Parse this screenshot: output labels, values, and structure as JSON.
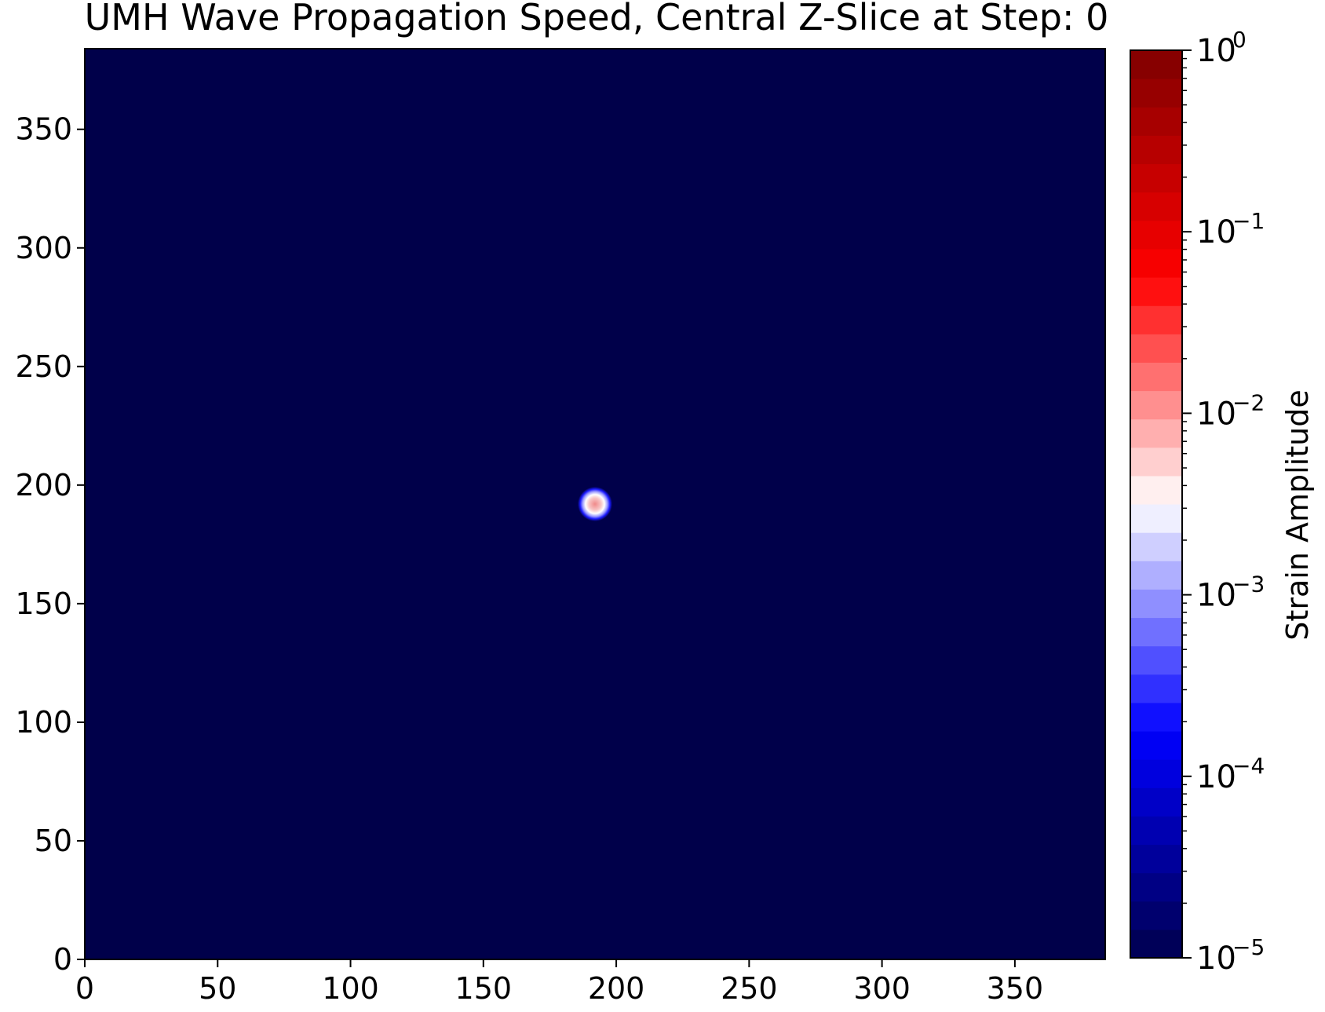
{
  "chart_data": {
    "type": "heatmap",
    "title": "UMH Wave Propagation Speed, Central Z-Slice at Step: 0",
    "xlabel": "",
    "ylabel": "",
    "xlim": [
      0,
      384
    ],
    "ylim": [
      0,
      384
    ],
    "x_ticks": [
      0,
      50,
      100,
      150,
      200,
      250,
      300,
      350
    ],
    "y_ticks": [
      0,
      50,
      100,
      150,
      200,
      250,
      300,
      350
    ],
    "background_value": 1e-05,
    "source": {
      "x": 192,
      "y": 192,
      "peak_value": 0.01,
      "rim_value": 0.0005,
      "radius": 5
    },
    "colorbar": {
      "label": "Strain Amplitude",
      "scale": "log",
      "range": [
        1e-05,
        1
      ],
      "ticks": [
        {
          "base": "10",
          "exp": "0",
          "value": 1
        },
        {
          "base": "10",
          "exp": "−1",
          "value": 0.1
        },
        {
          "base": "10",
          "exp": "−2",
          "value": 0.01
        },
        {
          "base": "10",
          "exp": "−3",
          "value": 0.001
        },
        {
          "base": "10",
          "exp": "−4",
          "value": 0.0001
        },
        {
          "base": "10",
          "exp": "−5",
          "value": 1e-05
        }
      ],
      "colormap": "seismic",
      "levels": 32
    },
    "grid": false
  }
}
